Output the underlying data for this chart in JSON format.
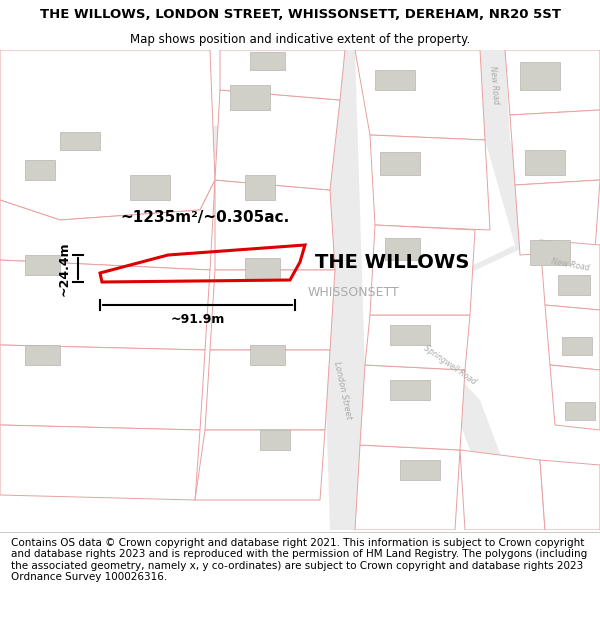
{
  "title_line1": "THE WILLOWS, LONDON STREET, WHISSONSETT, DEREHAM, NR20 5ST",
  "title_line2": "Map shows position and indicative extent of the property.",
  "footer_text": "Contains OS data © Crown copyright and database right 2021. This information is subject to Crown copyright and database rights 2023 and is reproduced with the permission of HM Land Registry. The polygons (including the associated geometry, namely x, y co-ordinates) are subject to Crown copyright and database rights 2023 Ordnance Survey 100026316.",
  "area_label": "~1235m²/~0.305ac.",
  "width_label": "~91.9m",
  "height_label": "~24.4m",
  "property_name": "THE WILLOWS",
  "town_name": "WHISSONSETT",
  "road_london": "London Street",
  "road_springwell": "Springwell Road",
  "road_new": "New Road",
  "map_bg": "#f9f9f7",
  "plot_color": "#dd0000",
  "building_fill": "#d0cfc8",
  "building_edge": "#b8b5ae",
  "parcel_fill": "#ffffff",
  "parcel_edge": "#e8a0a0",
  "road_fill": "#ebebeb",
  "road_edge": "#cccccc",
  "title_fontsize": 9.5,
  "subtitle_fontsize": 8.5,
  "footer_fontsize": 7.5,
  "area_fontsize": 11,
  "dim_fontsize": 9,
  "prop_fontsize": 14,
  "town_fontsize": 9
}
